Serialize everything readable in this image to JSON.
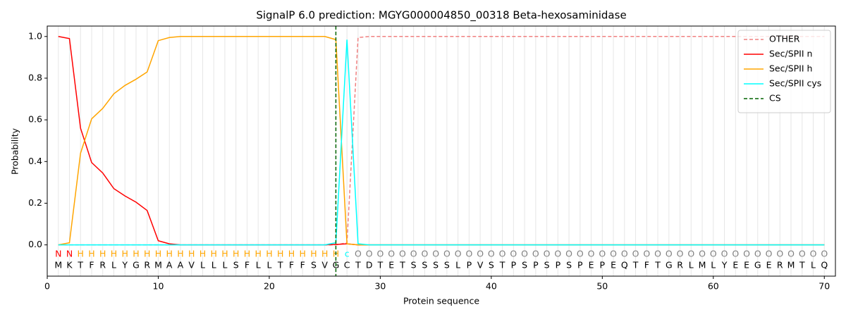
{
  "chart_data": {
    "type": "line",
    "title": "SignalP 6.0 prediction: MGYG000004850_00318 Beta-hexosaminidase",
    "x_label": "Protein sequence",
    "y_label": "Probability",
    "x": [
      1,
      2,
      3,
      4,
      5,
      6,
      7,
      8,
      9,
      10,
      11,
      12,
      13,
      14,
      15,
      16,
      17,
      18,
      19,
      20,
      21,
      22,
      23,
      24,
      25,
      26,
      27,
      28,
      29,
      30,
      31,
      32,
      33,
      34,
      35,
      36,
      37,
      38,
      39,
      40,
      41,
      42,
      43,
      44,
      45,
      46,
      47,
      48,
      49,
      50,
      51,
      52,
      53,
      54,
      55,
      56,
      57,
      58,
      59,
      60,
      61,
      62,
      63,
      64,
      65,
      66,
      67,
      68,
      69,
      70
    ],
    "sequence": [
      "M",
      "K",
      "T",
      "F",
      "R",
      "L",
      "Y",
      "G",
      "R",
      "M",
      "A",
      "A",
      "V",
      "L",
      "L",
      "L",
      "S",
      "F",
      "L",
      "L",
      "T",
      "F",
      "F",
      "S",
      "V",
      "G",
      "C",
      "T",
      "D",
      "T",
      "E",
      "T",
      "S",
      "S",
      "S",
      "S",
      "L",
      "P",
      "V",
      "S",
      "T",
      "P",
      "S",
      "P",
      "S",
      "P",
      "S",
      "P",
      "E",
      "P",
      "E",
      "Q",
      "T",
      "F",
      "T",
      "G",
      "R",
      "L",
      "M",
      "L",
      "Y",
      "E",
      "E",
      "G",
      "E",
      "R",
      "M",
      "T",
      "L",
      "Q"
    ],
    "annotations": [
      "N",
      "N",
      "H",
      "H",
      "H",
      "H",
      "H",
      "H",
      "H",
      "H",
      "H",
      "H",
      "H",
      "H",
      "H",
      "H",
      "H",
      "H",
      "H",
      "H",
      "H",
      "H",
      "H",
      "H",
      "H",
      "H",
      "c",
      "O",
      "O",
      "O",
      "O",
      "O",
      "O",
      "O",
      "O",
      "O",
      "O",
      "O",
      "O",
      "O",
      "O",
      "O",
      "O",
      "O",
      "O",
      "O",
      "O",
      "O",
      "O",
      "O",
      "O",
      "O",
      "O",
      "O",
      "O",
      "O",
      "O",
      "O",
      "O",
      "O",
      "O",
      "O",
      "O",
      "O",
      "O",
      "O",
      "O",
      "O",
      "O",
      "O"
    ],
    "annotation_colors": {
      "N": "#ff0000",
      "H": "#ffa500",
      "c": "#00ffff",
      "O": "#808080"
    },
    "series": [
      {
        "name": "OTHER",
        "color": "#f08080",
        "dash": true,
        "values": [
          0,
          0,
          0,
          0,
          0,
          0,
          0,
          0,
          0,
          0,
          0,
          0,
          0,
          0,
          0,
          0,
          0,
          0,
          0,
          0,
          0,
          0,
          0,
          0,
          0,
          0,
          0.01,
          0.995,
          1,
          1,
          1,
          1,
          1,
          1,
          1,
          1,
          1,
          1,
          1,
          1,
          1,
          1,
          1,
          1,
          1,
          1,
          1,
          1,
          1,
          1,
          1,
          1,
          1,
          1,
          1,
          1,
          1,
          1,
          1,
          1,
          1,
          1,
          1,
          1,
          1,
          1,
          1,
          1,
          1,
          1
        ]
      },
      {
        "name": "Sec/SPII n",
        "color": "#ff0000",
        "values": [
          1.0,
          0.99,
          0.56,
          0.395,
          0.345,
          0.27,
          0.235,
          0.205,
          0.165,
          0.02,
          0.005,
          0,
          0,
          0,
          0,
          0,
          0,
          0,
          0,
          0,
          0,
          0,
          0,
          0,
          0,
          0.002,
          0.005,
          0,
          0,
          0,
          0,
          0,
          0,
          0,
          0,
          0,
          0,
          0,
          0,
          0,
          0,
          0,
          0,
          0,
          0,
          0,
          0,
          0,
          0,
          0,
          0,
          0,
          0,
          0,
          0,
          0,
          0,
          0,
          0,
          0,
          0,
          0,
          0,
          0,
          0,
          0,
          0,
          0,
          0,
          0
        ]
      },
      {
        "name": "Sec/SPII h",
        "color": "#ffa500",
        "values": [
          0,
          0.01,
          0.44,
          0.605,
          0.655,
          0.725,
          0.765,
          0.795,
          0.83,
          0.98,
          0.995,
          1,
          1,
          1,
          1,
          1,
          1,
          1,
          1,
          1,
          1,
          1,
          1,
          1,
          1,
          0.985,
          0.005,
          0,
          0,
          0,
          0,
          0,
          0,
          0,
          0,
          0,
          0,
          0,
          0,
          0,
          0,
          0,
          0,
          0,
          0,
          0,
          0,
          0,
          0,
          0,
          0,
          0,
          0,
          0,
          0,
          0,
          0,
          0,
          0,
          0,
          0,
          0,
          0,
          0,
          0,
          0,
          0,
          0,
          0,
          0
        ]
      },
      {
        "name": "Sec/SPII cys",
        "color": "#00ffff",
        "values": [
          0,
          0,
          0,
          0,
          0,
          0,
          0,
          0,
          0,
          0,
          0,
          0,
          0,
          0,
          0,
          0,
          0,
          0,
          0,
          0,
          0,
          0,
          0,
          0,
          0,
          0.01,
          0.985,
          0.005,
          0,
          0,
          0,
          0,
          0,
          0,
          0,
          0,
          0,
          0,
          0,
          0,
          0,
          0,
          0,
          0,
          0,
          0,
          0,
          0,
          0,
          0,
          0,
          0,
          0,
          0,
          0,
          0,
          0,
          0,
          0,
          0,
          0,
          0,
          0,
          0,
          0,
          0,
          0,
          0,
          0,
          0
        ]
      }
    ],
    "cs": {
      "name": "CS",
      "color": "#006400",
      "position": 26
    },
    "xlim": [
      0,
      71
    ],
    "ylim": [
      -0.15,
      1.05
    ],
    "xticks": [
      0,
      10,
      20,
      30,
      40,
      50,
      60,
      70
    ],
    "yticks": [
      {
        "value": 0,
        "label": "0.0"
      },
      {
        "value": 0.2,
        "label": "0.2"
      },
      {
        "value": 0.4,
        "label": "0.4"
      },
      {
        "value": 0.6,
        "label": "0.6"
      },
      {
        "value": 0.8,
        "label": "0.8"
      },
      {
        "value": 1.0,
        "label": "1.0"
      }
    ],
    "grid": true,
    "legend": "upper right"
  }
}
